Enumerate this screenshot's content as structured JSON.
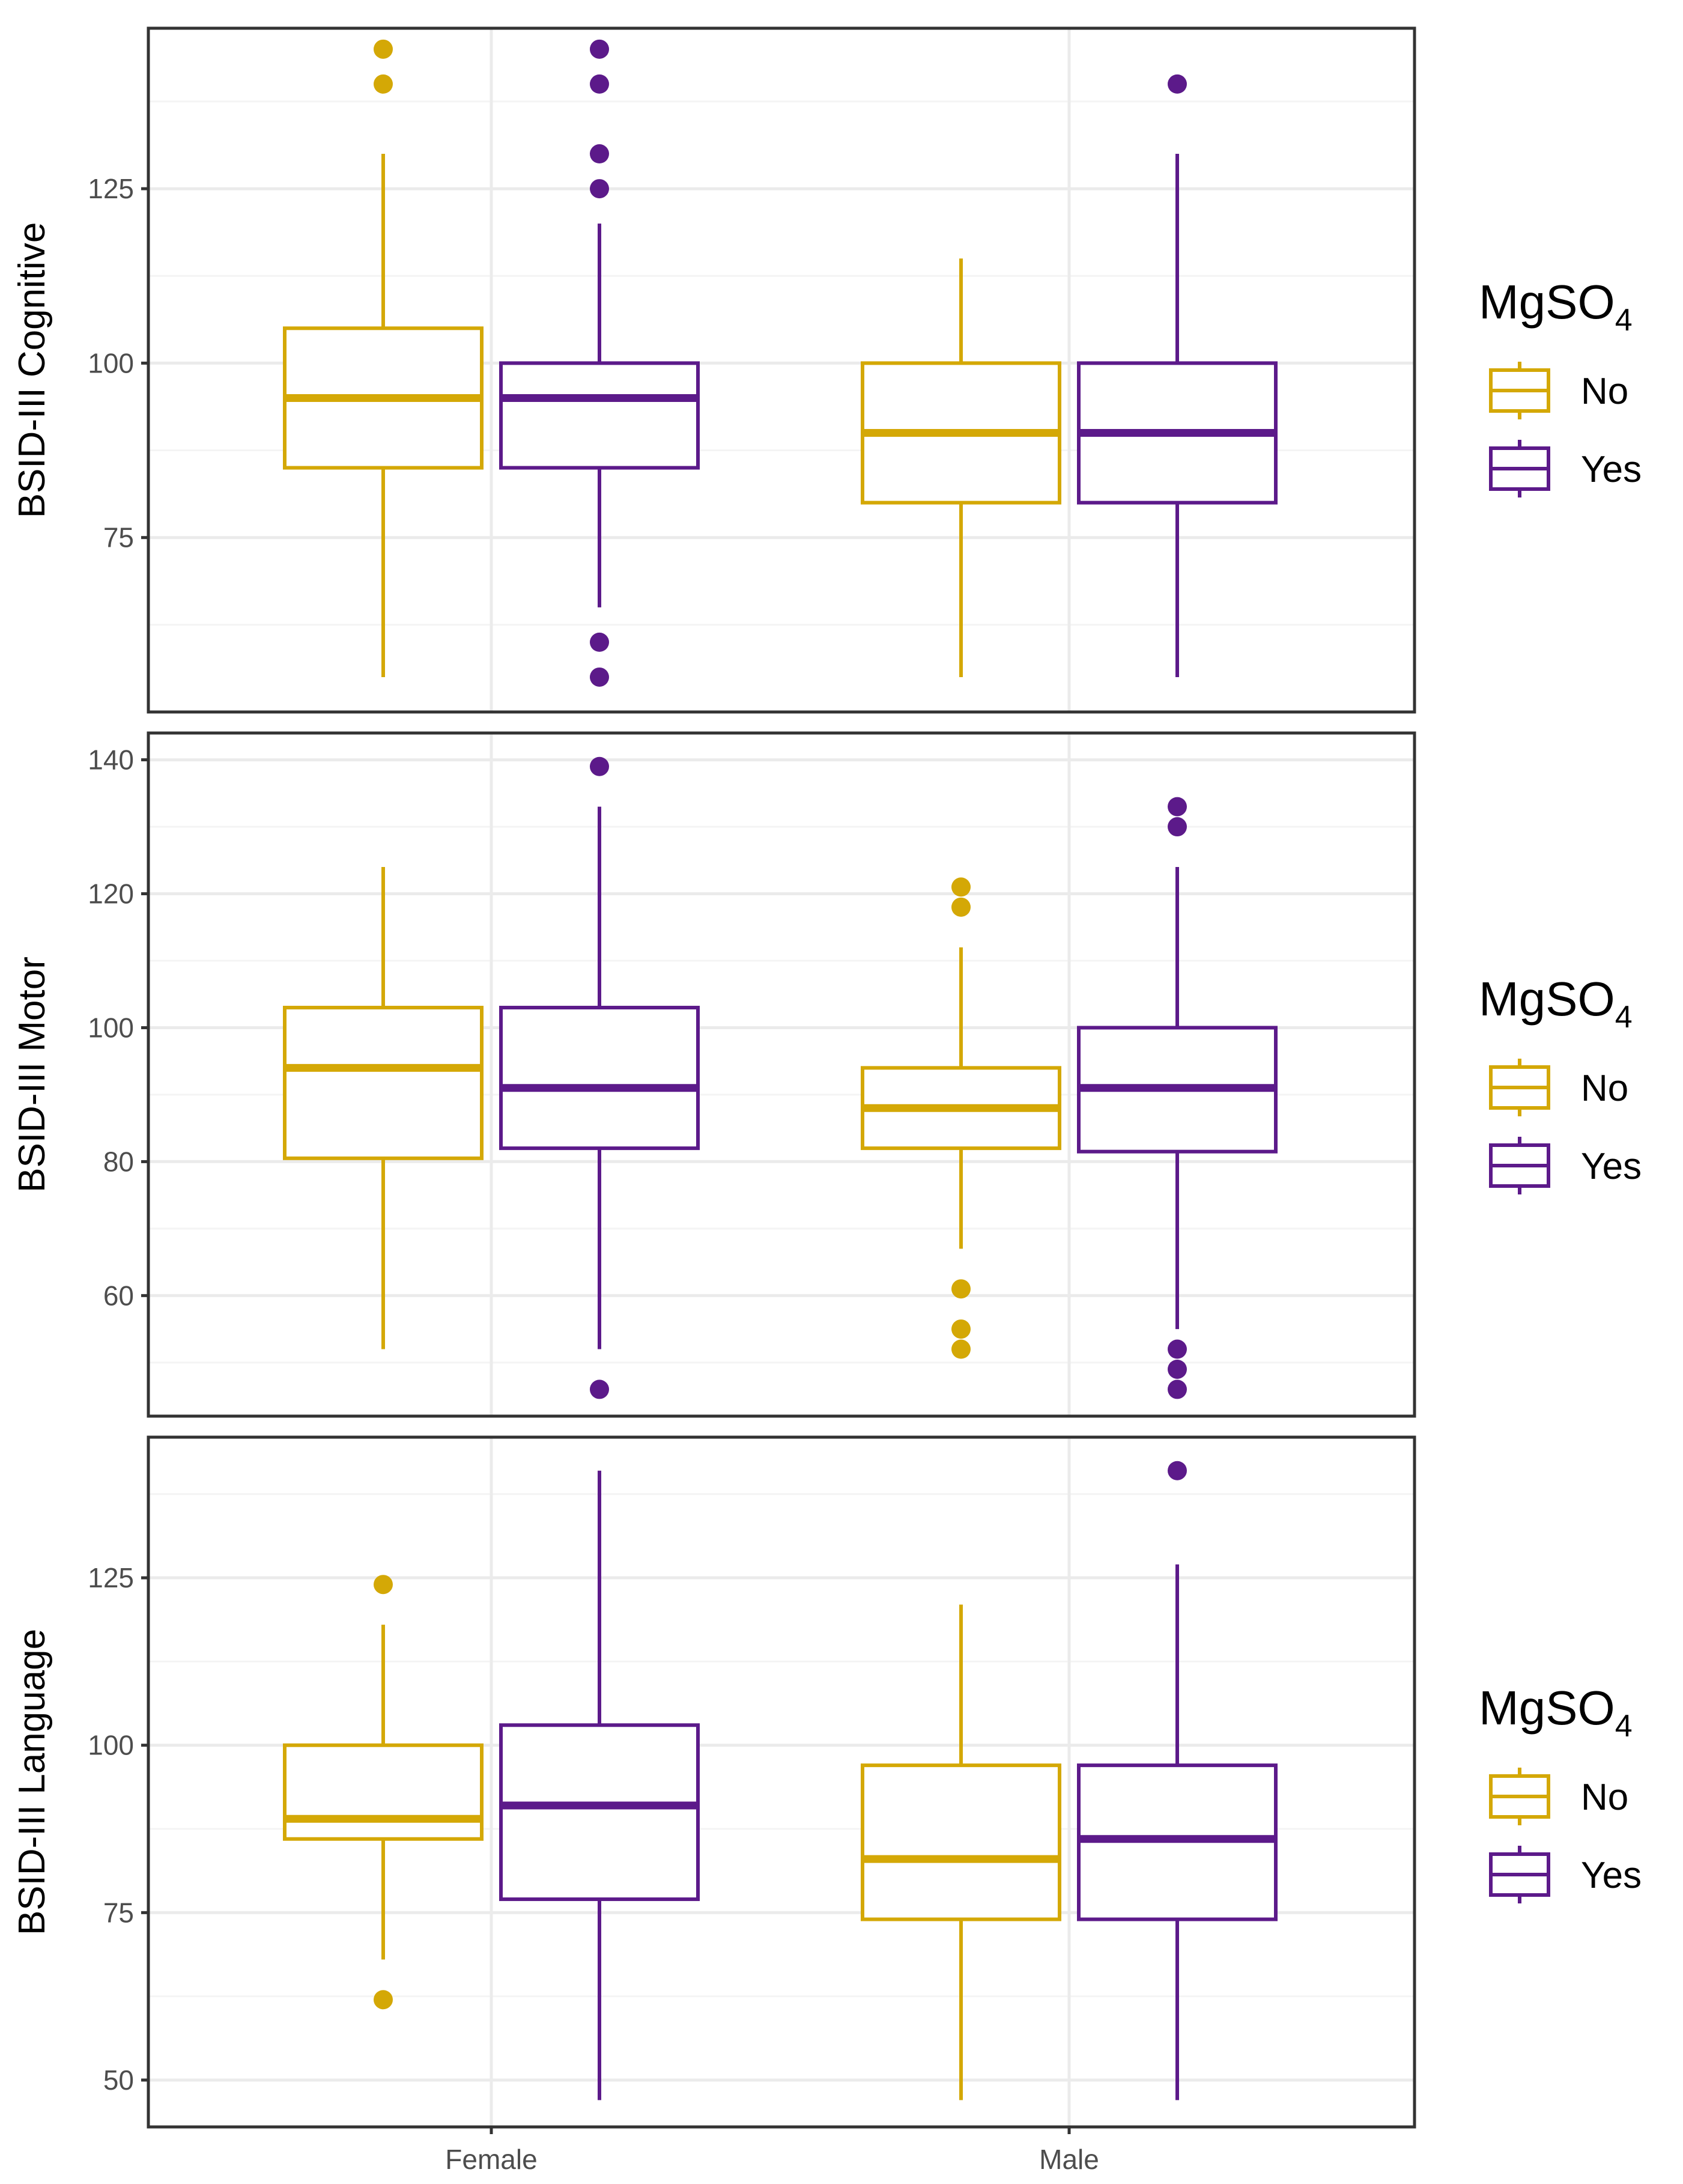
{
  "colors": {
    "No": "#D4A806",
    "Yes": "#5C1A8A",
    "grid_major": "#EBEBEB",
    "grid_minor": "#F4F4F4",
    "panel_border": "#333333"
  },
  "legend": {
    "title_main": "MgSO",
    "title_sub": "4",
    "items": [
      {
        "key": "No",
        "label": "No"
      },
      {
        "key": "Yes",
        "label": "Yes"
      }
    ]
  },
  "chart_data": [
    {
      "type": "boxplot",
      "ylabel": "BSID-III Cognitive",
      "ylim": [
        50,
        148
      ],
      "yticks": [
        75,
        100,
        125
      ],
      "categories": [
        "Female",
        "Male"
      ],
      "series": [
        {
          "name": "No",
          "boxes": [
            {
              "category": "Female",
              "min": 55,
              "q1": 85,
              "median": 95,
              "q3": 105,
              "max": 130,
              "outliers": [
                140,
                145
              ]
            },
            {
              "category": "Male",
              "min": 55,
              "q1": 80,
              "median": 90,
              "q3": 100,
              "max": 115,
              "outliers": []
            }
          ]
        },
        {
          "name": "Yes",
          "boxes": [
            {
              "category": "Female",
              "min": 65,
              "q1": 85,
              "median": 95,
              "q3": 100,
              "max": 120,
              "outliers": [
                55,
                60,
                125,
                130,
                140,
                145
              ]
            },
            {
              "category": "Male",
              "min": 55,
              "q1": 80,
              "median": 90,
              "q3": 100,
              "max": 130,
              "outliers": [
                140
              ]
            }
          ]
        }
      ]
    },
    {
      "type": "boxplot",
      "ylabel": "BSID-III Motor",
      "ylim": [
        42,
        144
      ],
      "yticks": [
        60,
        80,
        100,
        120,
        140
      ],
      "categories": [
        "Female",
        "Male"
      ],
      "series": [
        {
          "name": "No",
          "boxes": [
            {
              "category": "Female",
              "min": 52,
              "q1": 80.5,
              "median": 94,
              "q3": 103,
              "max": 124,
              "outliers": []
            },
            {
              "category": "Male",
              "min": 67,
              "q1": 82,
              "median": 88,
              "q3": 94,
              "max": 112,
              "outliers": [
                52,
                55,
                61,
                118,
                121
              ]
            }
          ]
        },
        {
          "name": "Yes",
          "boxes": [
            {
              "category": "Female",
              "min": 52,
              "q1": 82,
              "median": 91,
              "q3": 103,
              "max": 133,
              "outliers": [
                46,
                139
              ]
            },
            {
              "category": "Male",
              "min": 55,
              "q1": 81.5,
              "median": 91,
              "q3": 100,
              "max": 124,
              "outliers": [
                46,
                49,
                52,
                130,
                133
              ]
            }
          ]
        }
      ]
    },
    {
      "type": "boxplot",
      "ylabel": "BSID-III Language",
      "ylim": [
        43,
        146
      ],
      "yticks": [
        50,
        75,
        100,
        125
      ],
      "categories": [
        "Female",
        "Male"
      ],
      "series": [
        {
          "name": "No",
          "boxes": [
            {
              "category": "Female",
              "min": 68,
              "q1": 86,
              "median": 89,
              "q3": 100,
              "max": 118,
              "outliers": [
                62,
                124
              ]
            },
            {
              "category": "Male",
              "min": 47,
              "q1": 74,
              "median": 83,
              "q3": 97,
              "max": 121,
              "outliers": []
            }
          ]
        },
        {
          "name": "Yes",
          "boxes": [
            {
              "category": "Female",
              "min": 47,
              "q1": 77,
              "median": 91,
              "q3": 103,
              "max": 141,
              "outliers": []
            },
            {
              "category": "Male",
              "min": 47,
              "q1": 74,
              "median": 86,
              "q3": 97,
              "max": 127,
              "outliers": [
                141
              ]
            }
          ]
        }
      ]
    }
  ]
}
